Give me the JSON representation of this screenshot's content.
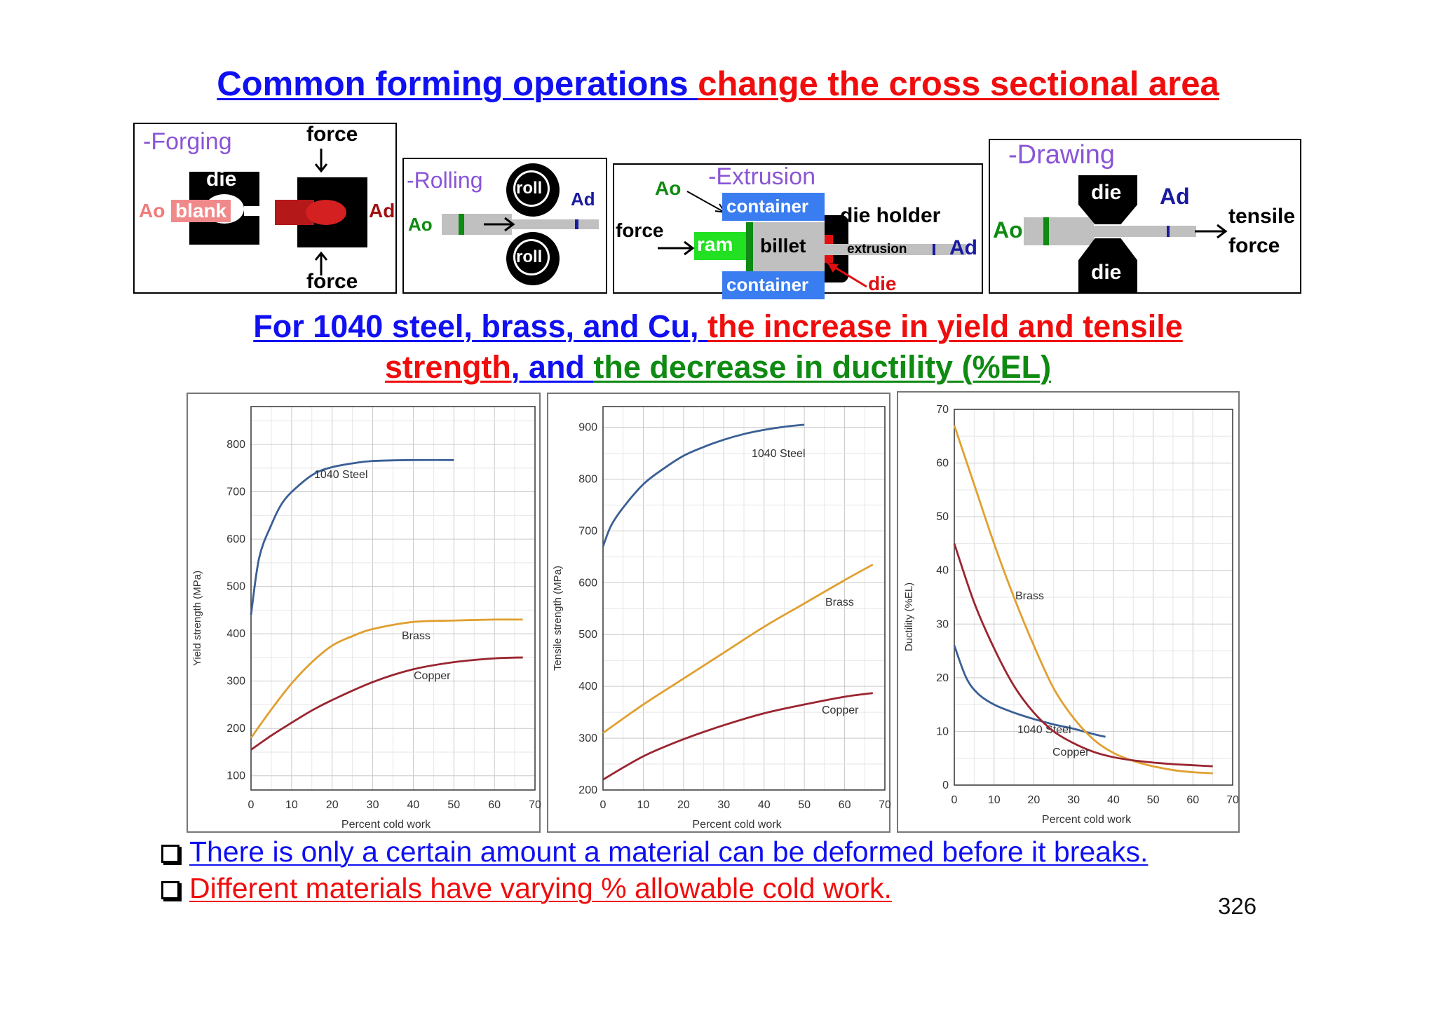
{
  "title": {
    "part1": "Common forming operations ",
    "part2": "change the cross sectional area"
  },
  "forging": {
    "label": "-Forging",
    "force_top": "force",
    "force_bottom": "force",
    "die": "die",
    "a0": "Ao",
    "blank": "blank",
    "ad": "Ad"
  },
  "rolling": {
    "label": "-Rolling",
    "roll_top": "roll",
    "roll_bottom": "roll",
    "a0": "Ao",
    "ad": "Ad"
  },
  "extrusion": {
    "label": "-Extrusion",
    "a0": "Ao",
    "container_top": "container",
    "container_bottom": "container",
    "force": "force",
    "ram": "ram",
    "billet": "billet",
    "die_holder": "die holder",
    "extrusion": "extrusion",
    "ad": "Ad",
    "die": "die"
  },
  "drawing": {
    "label": "-Drawing",
    "die_top": "die",
    "die_bottom": "die",
    "a0": "Ao",
    "ad": "Ad",
    "tensile": "tensile",
    "force": "force"
  },
  "subtitle": {
    "line1_a": "For 1040 steel, brass, and Cu, ",
    "line1_b": "the increase in yield and tensile",
    "line2_a": "strength",
    "line2_b": ", and ",
    "line2_c": "the decrease in ductility (%EL)"
  },
  "chart_data": [
    {
      "type": "line",
      "xlabel": "Percent cold work",
      "ylabel": "Yield strength (MPa)",
      "xlim": [
        0,
        70
      ],
      "ylim": [
        70,
        880
      ],
      "xticks": [
        0,
        10,
        20,
        30,
        40,
        50,
        60,
        70
      ],
      "yticks": [
        100,
        200,
        300,
        400,
        500,
        600,
        700,
        800
      ],
      "series": [
        {
          "name": "1040 Steel",
          "color": "#3a5f95",
          "x": [
            0,
            2,
            5,
            8,
            12,
            16,
            20,
            25,
            30,
            40,
            50
          ],
          "y": [
            440,
            560,
            630,
            680,
            715,
            740,
            752,
            760,
            765,
            767,
            767
          ]
        },
        {
          "name": "Brass",
          "color": "#e0a030",
          "x": [
            0,
            5,
            10,
            15,
            20,
            25,
            30,
            40,
            50,
            60,
            67
          ],
          "y": [
            180,
            240,
            295,
            340,
            375,
            395,
            410,
            425,
            428,
            430,
            430
          ]
        },
        {
          "name": "Copper",
          "color": "#9a2530",
          "x": [
            0,
            5,
            10,
            15,
            20,
            30,
            40,
            50,
            60,
            67
          ],
          "y": [
            155,
            185,
            212,
            238,
            260,
            298,
            325,
            340,
            348,
            350
          ]
        }
      ],
      "grid": true
    },
    {
      "type": "line",
      "xlabel": "Percent cold work",
      "ylabel": "Tensile strength (MPa)",
      "xlim": [
        0,
        70
      ],
      "ylim": [
        200,
        940
      ],
      "xticks": [
        0,
        10,
        20,
        30,
        40,
        50,
        60,
        70
      ],
      "yticks": [
        200,
        300,
        400,
        500,
        600,
        700,
        800,
        900
      ],
      "series": [
        {
          "name": "1040 Steel",
          "color": "#3a5f95",
          "x": [
            0,
            2,
            5,
            10,
            15,
            20,
            25,
            30,
            35,
            40,
            45,
            50
          ],
          "y": [
            670,
            710,
            745,
            790,
            820,
            845,
            862,
            876,
            887,
            895,
            901,
            905
          ]
        },
        {
          "name": "Brass",
          "color": "#e0a030",
          "x": [
            0,
            10,
            20,
            30,
            40,
            50,
            60,
            67
          ],
          "y": [
            310,
            365,
            415,
            465,
            515,
            560,
            605,
            635
          ]
        },
        {
          "name": "Copper",
          "color": "#9a2530",
          "x": [
            0,
            10,
            20,
            30,
            40,
            50,
            60,
            67
          ],
          "y": [
            220,
            265,
            298,
            325,
            348,
            365,
            380,
            387
          ]
        }
      ],
      "grid": true
    },
    {
      "type": "line",
      "xlabel": "Percent cold work",
      "ylabel": "Ductility (%EL)",
      "xlim": [
        0,
        70
      ],
      "ylim": [
        0,
        70
      ],
      "xticks": [
        0,
        10,
        20,
        30,
        40,
        50,
        60,
        70
      ],
      "yticks": [
        0,
        10,
        20,
        30,
        40,
        50,
        60,
        70
      ],
      "series": [
        {
          "name": "1040 Steel",
          "color": "#3a5f95",
          "x": [
            0,
            3,
            6,
            10,
            15,
            20,
            25,
            30,
            35,
            38
          ],
          "y": [
            26,
            20,
            17,
            15,
            13.5,
            12.3,
            11.3,
            10.5,
            9.5,
            9
          ]
        },
        {
          "name": "Brass",
          "color": "#e0a030",
          "x": [
            0,
            5,
            10,
            15,
            20,
            25,
            30,
            35,
            40,
            45,
            50,
            55,
            60,
            65
          ],
          "y": [
            67,
            56,
            45,
            35,
            26,
            18,
            12.5,
            8.5,
            6,
            4.5,
            3.5,
            2.8,
            2.4,
            2.2
          ]
        },
        {
          "name": "Copper",
          "color": "#9a2530",
          "x": [
            0,
            5,
            10,
            15,
            20,
            25,
            30,
            35,
            40,
            45,
            50,
            55,
            60,
            65
          ],
          "y": [
            45,
            34,
            25.5,
            18.5,
            13.5,
            10,
            7.8,
            6.2,
            5.2,
            4.6,
            4.2,
            3.9,
            3.7,
            3.5
          ]
        }
      ],
      "grid": true
    }
  ],
  "bullets": [
    {
      "text": "There is only a certain amount a material can be deformed before it breaks.",
      "color": "#1010f0"
    },
    {
      "text": "Different materials have varying % allowable cold work.",
      "color": "#f00d0d"
    }
  ],
  "page_number": "326"
}
